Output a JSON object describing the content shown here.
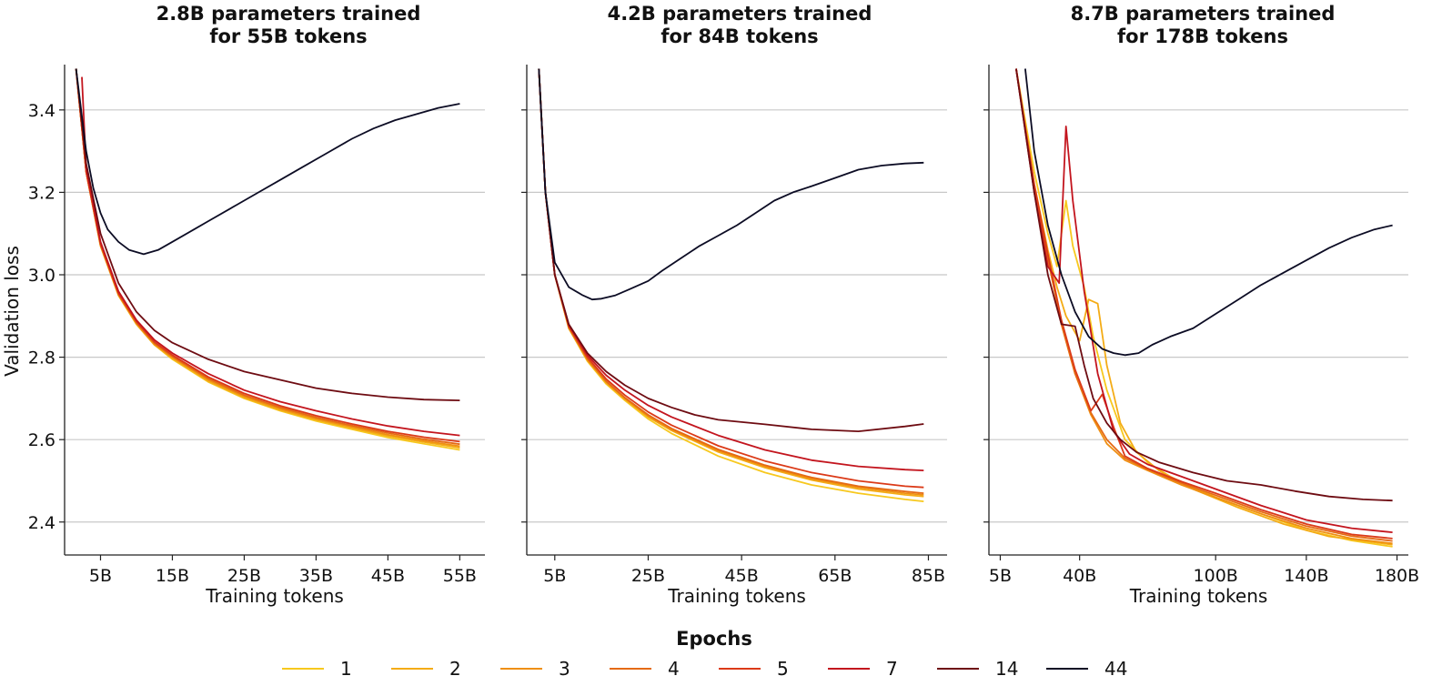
{
  "figure": {
    "ylabel": "Validation loss",
    "legend_title": "Epochs"
  },
  "colors": {
    "1": "#f7c81e",
    "2": "#f4ac16",
    "3": "#ef8f12",
    "4": "#e56a14",
    "5": "#db3a18",
    "7": "#c3151e",
    "14": "#6e0c12",
    "44": "#0c0c24",
    "grid": "#c8c8c8",
    "axis": "#222222"
  },
  "chart_data": [
    {
      "type": "line",
      "title": "2.8B parameters trained\nfor 55B tokens",
      "title_lines": [
        "2.8B parameters trained",
        "for 55B tokens"
      ],
      "xlabel": "Training tokens",
      "ylabel": "Validation loss",
      "xlim": [
        0,
        58.5
      ],
      "ylim": [
        2.32,
        3.51
      ],
      "xticks": [
        5,
        15,
        25,
        35,
        45,
        55
      ],
      "xtick_labels": [
        "5B",
        "15B",
        "25B",
        "35B",
        "45B",
        "55B"
      ],
      "yticks": [
        2.4,
        2.6,
        2.8,
        3.0,
        3.2,
        3.4
      ],
      "ytick_labels": [
        "2.4",
        "2.6",
        "2.8",
        "3.0",
        "3.2",
        "3.4"
      ],
      "grid": "horizontal",
      "series": [
        {
          "name": "1",
          "x": [
            1.6,
            3,
            5,
            7.5,
            10,
            12.5,
            15,
            20,
            25,
            30,
            35,
            40,
            45,
            50,
            55
          ],
          "y": [
            3.5,
            3.25,
            3.07,
            2.95,
            2.88,
            2.83,
            2.795,
            2.74,
            2.7,
            2.67,
            2.645,
            2.625,
            2.605,
            2.59,
            2.575
          ]
        },
        {
          "name": "2",
          "x": [
            1.6,
            3,
            5,
            7.5,
            10,
            12.5,
            15,
            20,
            25,
            30,
            35,
            40,
            45,
            50,
            55
          ],
          "y": [
            3.5,
            3.25,
            3.07,
            2.95,
            2.88,
            2.83,
            2.797,
            2.742,
            2.702,
            2.672,
            2.648,
            2.628,
            2.609,
            2.594,
            2.58
          ]
        },
        {
          "name": "3",
          "x": [
            1.6,
            3,
            5,
            7.5,
            10,
            12.5,
            15,
            20,
            25,
            30,
            35,
            40,
            45,
            50,
            55
          ],
          "y": [
            3.5,
            3.25,
            3.072,
            2.952,
            2.882,
            2.832,
            2.8,
            2.745,
            2.705,
            2.675,
            2.651,
            2.631,
            2.612,
            2.597,
            2.584
          ]
        },
        {
          "name": "4",
          "x": [
            1.6,
            3,
            5,
            7.5,
            10,
            12.5,
            15,
            20,
            25,
            30,
            35,
            40,
            45,
            50,
            55
          ],
          "y": [
            3.5,
            3.25,
            3.073,
            2.953,
            2.884,
            2.834,
            2.802,
            2.748,
            2.708,
            2.678,
            2.654,
            2.634,
            2.616,
            2.601,
            2.589
          ]
        },
        {
          "name": "5",
          "x": [
            1.6,
            3,
            5,
            7.5,
            10,
            12.5,
            15,
            20,
            25,
            30,
            35,
            40,
            45,
            50,
            55
          ],
          "y": [
            3.5,
            3.25,
            3.075,
            2.955,
            2.886,
            2.837,
            2.805,
            2.752,
            2.712,
            2.682,
            2.658,
            2.638,
            2.62,
            2.606,
            2.595
          ]
        },
        {
          "name": "7",
          "x": [
            2.4,
            3,
            5,
            7.5,
            10,
            12.5,
            15,
            20,
            25,
            30,
            35,
            40,
            45,
            50,
            55
          ],
          "y": [
            3.48,
            3.26,
            3.08,
            2.96,
            2.89,
            2.842,
            2.81,
            2.76,
            2.72,
            2.692,
            2.67,
            2.65,
            2.633,
            2.62,
            2.61
          ]
        },
        {
          "name": "14",
          "x": [
            1.6,
            3,
            5,
            7.5,
            10,
            12.5,
            15,
            20,
            25,
            30,
            35,
            40,
            45,
            50,
            55
          ],
          "y": [
            3.5,
            3.27,
            3.1,
            2.98,
            2.91,
            2.865,
            2.835,
            2.795,
            2.765,
            2.745,
            2.725,
            2.712,
            2.703,
            2.697,
            2.695
          ]
        },
        {
          "name": "44",
          "x": [
            1.6,
            3,
            4,
            5,
            6,
            7.5,
            9,
            11,
            13,
            15,
            18,
            20,
            24,
            27,
            30,
            33,
            36,
            40,
            43,
            46,
            49,
            52,
            55
          ],
          "y": [
            3.5,
            3.3,
            3.21,
            3.15,
            3.11,
            3.08,
            3.06,
            3.05,
            3.06,
            3.08,
            3.11,
            3.13,
            3.17,
            3.2,
            3.23,
            3.26,
            3.29,
            3.33,
            3.355,
            3.375,
            3.39,
            3.405,
            3.415
          ]
        }
      ]
    },
    {
      "type": "line",
      "title": "4.2B parameters trained\nfor 84B tokens",
      "title_lines": [
        "4.2B parameters trained",
        "for 84B tokens"
      ],
      "xlabel": "Training tokens",
      "ylabel": "",
      "xlim": [
        -1,
        89
      ],
      "ylim": [
        2.32,
        3.51
      ],
      "xticks": [
        5,
        25,
        45,
        65,
        85
      ],
      "xtick_labels": [
        "5B",
        "25B",
        "45B",
        "65B",
        "85B"
      ],
      "yticks": [
        2.4,
        2.6,
        2.8,
        3.0,
        3.2,
        3.4
      ],
      "ytick_labels": [],
      "grid": "horizontal",
      "series": [
        {
          "name": "1",
          "x": [
            1.6,
            3,
            5,
            8,
            12,
            16,
            20,
            25,
            30,
            40,
            50,
            60,
            70,
            80,
            84
          ],
          "y": [
            3.5,
            3.2,
            3.0,
            2.87,
            2.79,
            2.735,
            2.695,
            2.65,
            2.615,
            2.56,
            2.52,
            2.49,
            2.47,
            2.455,
            2.45
          ]
        },
        {
          "name": "2",
          "x": [
            1.6,
            3,
            5,
            8,
            12,
            16,
            20,
            25,
            30,
            40,
            50,
            60,
            70,
            80,
            84
          ],
          "y": [
            3.5,
            3.2,
            3.0,
            2.87,
            2.792,
            2.738,
            2.698,
            2.655,
            2.622,
            2.57,
            2.532,
            2.502,
            2.48,
            2.466,
            2.462
          ]
        },
        {
          "name": "3",
          "x": [
            1.6,
            3,
            5,
            8,
            12,
            16,
            20,
            25,
            30,
            40,
            50,
            60,
            70,
            80,
            84
          ],
          "y": [
            3.5,
            3.2,
            3.0,
            2.872,
            2.794,
            2.74,
            2.7,
            2.657,
            2.624,
            2.573,
            2.535,
            2.505,
            2.484,
            2.47,
            2.466
          ]
        },
        {
          "name": "4",
          "x": [
            1.6,
            3,
            5,
            8,
            12,
            16,
            20,
            25,
            30,
            40,
            50,
            60,
            70,
            80,
            84
          ],
          "y": [
            3.5,
            3.2,
            3.0,
            2.873,
            2.796,
            2.742,
            2.702,
            2.66,
            2.627,
            2.576,
            2.538,
            2.508,
            2.487,
            2.474,
            2.47
          ]
        },
        {
          "name": "5",
          "x": [
            1.6,
            3,
            5,
            8,
            12,
            16,
            20,
            25,
            30,
            40,
            50,
            60,
            70,
            80,
            84
          ],
          "y": [
            3.5,
            3.2,
            3.0,
            2.875,
            2.8,
            2.747,
            2.708,
            2.667,
            2.635,
            2.585,
            2.548,
            2.52,
            2.5,
            2.487,
            2.484
          ]
        },
        {
          "name": "7",
          "x": [
            1.6,
            3,
            5,
            8,
            12,
            16,
            20,
            25,
            30,
            40,
            50,
            60,
            70,
            80,
            84
          ],
          "y": [
            3.5,
            3.2,
            3.0,
            2.878,
            2.805,
            2.756,
            2.72,
            2.683,
            2.655,
            2.61,
            2.575,
            2.55,
            2.535,
            2.527,
            2.525
          ]
        },
        {
          "name": "14",
          "x": [
            1.6,
            3,
            5,
            8,
            12,
            16,
            20,
            25,
            30,
            35,
            40,
            50,
            60,
            70,
            80,
            84
          ],
          "y": [
            3.5,
            3.2,
            3.0,
            2.88,
            2.81,
            2.765,
            2.732,
            2.7,
            2.678,
            2.66,
            2.648,
            2.637,
            2.625,
            2.62,
            2.632,
            2.638
          ]
        },
        {
          "name": "44",
          "x": [
            1.6,
            3,
            5,
            8,
            11,
            13,
            15,
            18,
            21,
            25,
            28,
            32,
            36,
            40,
            44,
            48,
            52,
            56,
            60,
            65,
            70,
            75,
            80,
            84
          ],
          "y": [
            3.5,
            3.2,
            3.03,
            2.97,
            2.95,
            2.94,
            2.942,
            2.95,
            2.965,
            2.985,
            3.01,
            3.04,
            3.07,
            3.095,
            3.12,
            3.15,
            3.18,
            3.2,
            3.215,
            3.235,
            3.255,
            3.265,
            3.27,
            3.272
          ]
        }
      ]
    },
    {
      "type": "line",
      "title": "8.7B parameters trained\nfor 178B tokens",
      "title_lines": [
        "8.7B parameters trained",
        "for 178B tokens"
      ],
      "xlabel": "Training tokens",
      "ylabel": "",
      "xlim": [
        0,
        185
      ],
      "ylim": [
        2.32,
        3.51
      ],
      "xticks": [
        5,
        40,
        100,
        140,
        180
      ],
      "xtick_labels": [
        "5B",
        "40B",
        "100B",
        "140B",
        "180B"
      ],
      "yticks": [
        2.4,
        2.6,
        2.8,
        3.0,
        3.2,
        3.4
      ],
      "ytick_labels": [],
      "grid": "horizontal",
      "series": [
        {
          "name": "1",
          "x": [
            12,
            20,
            26,
            30,
            34,
            37,
            42,
            46,
            52,
            60,
            70,
            80,
            100,
            120,
            140,
            160,
            178
          ],
          "y": [
            3.5,
            3.25,
            3.1,
            3.02,
            3.18,
            3.07,
            2.97,
            2.85,
            2.72,
            2.6,
            2.545,
            2.51,
            2.46,
            2.42,
            2.38,
            2.355,
            2.34
          ]
        },
        {
          "name": "2",
          "x": [
            12,
            20,
            26,
            30,
            34,
            40,
            44,
            48,
            52,
            58,
            65,
            75,
            90,
            110,
            130,
            150,
            178
          ],
          "y": [
            3.5,
            3.22,
            3.06,
            2.97,
            2.9,
            2.84,
            2.94,
            2.93,
            2.78,
            2.64,
            2.57,
            2.525,
            2.48,
            2.435,
            2.395,
            2.365,
            2.345
          ]
        },
        {
          "name": "3",
          "x": [
            12,
            20,
            26,
            32,
            38,
            45,
            52,
            60,
            70,
            85,
            100,
            120,
            140,
            160,
            178
          ],
          "y": [
            3.5,
            3.21,
            3.04,
            2.88,
            2.76,
            2.66,
            2.59,
            2.55,
            2.525,
            2.49,
            2.46,
            2.42,
            2.385,
            2.36,
            2.348
          ]
        },
        {
          "name": "4",
          "x": [
            12,
            20,
            26,
            32,
            38,
            45,
            52,
            60,
            70,
            85,
            100,
            120,
            140,
            160,
            178
          ],
          "y": [
            3.5,
            3.21,
            3.04,
            2.88,
            2.76,
            2.665,
            2.6,
            2.555,
            2.528,
            2.494,
            2.465,
            2.425,
            2.39,
            2.366,
            2.354
          ]
        },
        {
          "name": "5",
          "x": [
            12,
            20,
            26,
            32,
            38,
            45,
            50,
            55,
            60,
            70,
            85,
            100,
            120,
            140,
            160,
            178
          ],
          "y": [
            3.5,
            3.22,
            3.05,
            2.89,
            2.77,
            2.67,
            2.71,
            2.63,
            2.56,
            2.53,
            2.498,
            2.47,
            2.43,
            2.395,
            2.37,
            2.36
          ]
        },
        {
          "name": "7",
          "x": [
            12,
            20,
            26,
            31,
            34,
            37,
            42,
            48,
            55,
            62,
            70,
            85,
            100,
            120,
            140,
            160,
            178
          ],
          "y": [
            3.5,
            3.2,
            3.02,
            2.98,
            3.36,
            3.18,
            2.96,
            2.76,
            2.62,
            2.565,
            2.54,
            2.51,
            2.48,
            2.44,
            2.405,
            2.385,
            2.375
          ]
        },
        {
          "name": "14",
          "x": [
            12,
            20,
            26,
            32,
            38,
            42,
            46,
            52,
            58,
            65,
            75,
            90,
            105,
            120,
            135,
            150,
            165,
            178
          ],
          "y": [
            3.5,
            3.2,
            3.0,
            2.88,
            2.875,
            2.78,
            2.7,
            2.64,
            2.6,
            2.57,
            2.545,
            2.52,
            2.5,
            2.49,
            2.475,
            2.462,
            2.455,
            2.452
          ]
        },
        {
          "name": "44",
          "x": [
            16,
            20,
            26,
            32,
            38,
            44,
            50,
            55,
            60,
            66,
            72,
            80,
            90,
            100,
            110,
            120,
            130,
            140,
            150,
            160,
            170,
            178
          ],
          "y": [
            3.5,
            3.3,
            3.12,
            3.0,
            2.91,
            2.85,
            2.82,
            2.81,
            2.805,
            2.81,
            2.83,
            2.85,
            2.87,
            2.905,
            2.94,
            2.975,
            3.005,
            3.035,
            3.065,
            3.09,
            3.11,
            3.12
          ]
        }
      ]
    }
  ],
  "legend": {
    "title": "Epochs",
    "placement": "bottom-center",
    "entries": [
      "1",
      "2",
      "3",
      "4",
      "5",
      "7",
      "14",
      "44"
    ]
  }
}
